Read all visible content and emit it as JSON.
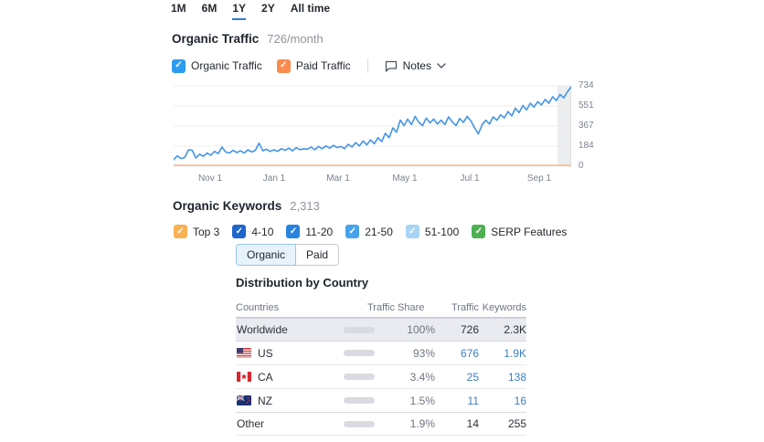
{
  "tabs": {
    "items": [
      {
        "label": "1M",
        "active": false
      },
      {
        "label": "6M",
        "active": false
      },
      {
        "label": "1Y",
        "active": true
      },
      {
        "label": "2Y",
        "active": false
      },
      {
        "label": "All time",
        "active": false
      }
    ]
  },
  "organic_traffic": {
    "title": "Organic Traffic",
    "value": "726/month",
    "legend": [
      {
        "label": "Organic Traffic",
        "checked": true,
        "color": "#2d9cf0"
      },
      {
        "label": "Paid Traffic",
        "checked": true,
        "color": "#fb8b4c"
      }
    ],
    "notes_label": "Notes"
  },
  "chart_data": {
    "type": "line",
    "title": "Organic Traffic over 1Y",
    "x_ticks": [
      "Nov 1",
      "Jan 1",
      "Mar 1",
      "May 1",
      "Jul 1",
      "Sep 1"
    ],
    "y_ticks": [
      "734",
      "551",
      "367",
      "184",
      "0"
    ],
    "ylim": [
      0,
      734
    ],
    "grid": true,
    "series": [
      {
        "name": "Organic Traffic",
        "color": "#4395e7",
        "values": [
          60,
          95,
          70,
          80,
          150,
          145,
          75,
          110,
          90,
          120,
          100,
          135,
          115,
          175,
          130,
          120,
          145,
          125,
          140,
          120,
          150,
          130,
          145,
          210,
          140,
          155,
          135,
          150,
          135,
          160,
          145,
          165,
          140,
          170,
          150,
          160,
          155,
          175,
          150,
          180,
          160,
          185,
          165,
          190,
          170,
          180,
          160,
          200,
          175,
          215,
          185,
          230,
          195,
          240,
          205,
          260,
          225,
          300,
          260,
          350,
          310,
          420,
          370,
          430,
          380,
          455,
          400,
          370,
          440,
          395,
          430,
          385,
          420,
          380,
          450,
          405,
          370,
          435,
          400,
          455,
          415,
          350,
          295,
          375,
          420,
          385,
          450,
          420,
          470,
          440,
          500,
          460,
          530,
          490,
          555,
          515,
          575,
          540,
          590,
          560,
          610,
          575,
          635,
          600,
          655,
          625,
          680,
          725
        ]
      },
      {
        "name": "Paid Traffic",
        "color": "#f3b98e",
        "constant_value": 0
      }
    ]
  },
  "organic_keywords": {
    "title": "Organic Keywords",
    "value": "2,313",
    "filters": [
      {
        "label": "Top 3",
        "checked": true,
        "color": "#f9b153"
      },
      {
        "label": "4-10",
        "checked": true,
        "color": "#1f66cb"
      },
      {
        "label": "11-20",
        "checked": true,
        "color": "#2a83de"
      },
      {
        "label": "21-50",
        "checked": true,
        "color": "#47a3ee"
      },
      {
        "label": "51-100",
        "checked": true,
        "color": "#a9d4f5"
      },
      {
        "label": "SERP Features",
        "checked": true,
        "color": "#4db052"
      }
    ]
  },
  "channel_toggle": {
    "options": [
      "Organic",
      "Paid"
    ],
    "selected": "Organic"
  },
  "country_table": {
    "title": "Distribution by Country",
    "columns": [
      "Countries",
      "Traffic Share",
      "Traffic",
      "Keywords"
    ],
    "rows": [
      {
        "country": "Worldwide",
        "flag": "",
        "share_pct": 100,
        "share": "100%",
        "traffic": "726",
        "keywords": "2.3K"
      },
      {
        "country": "US",
        "flag": "us",
        "share_pct": 93,
        "share": "93%",
        "traffic": "676",
        "keywords": "1.9K"
      },
      {
        "country": "CA",
        "flag": "ca",
        "share_pct": 3.4,
        "share": "3.4%",
        "traffic": "25",
        "keywords": "138"
      },
      {
        "country": "NZ",
        "flag": "nz",
        "share_pct": 1.5,
        "share": "1.5%",
        "traffic": "11",
        "keywords": "16"
      },
      {
        "country": "Other",
        "flag": "",
        "share_pct": 1.9,
        "share": "1.9%",
        "traffic": "14",
        "keywords": "255"
      }
    ]
  },
  "colors": {
    "accent_blue": "#2e7cd6",
    "link_blue": "#3d7dc2",
    "bar_blue": "#3e97e9",
    "bar_gray": "#d8dbe0",
    "highlight_row": "#e9ebf0",
    "paid_orange": "#f3b98e"
  }
}
